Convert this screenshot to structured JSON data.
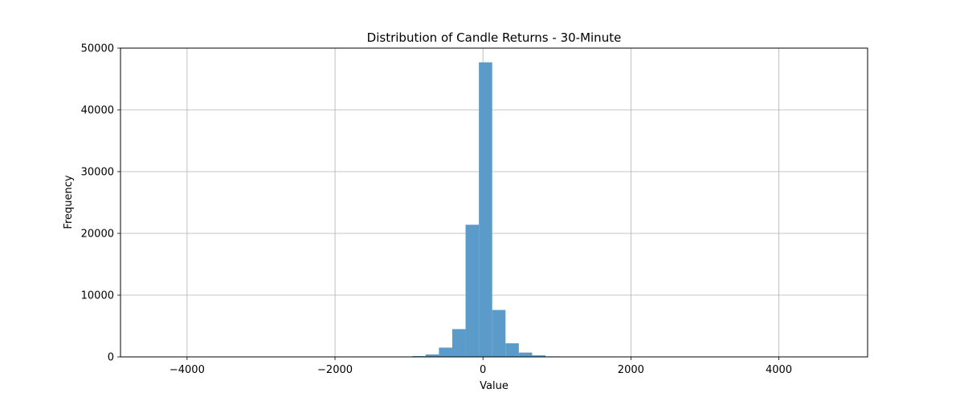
{
  "chart_data": {
    "type": "bar",
    "subtype": "histogram",
    "title": "Distribution of Candle Returns - 30-Minute",
    "xlabel": "Value",
    "ylabel": "Frequency",
    "xlim": [
      -4900,
      5200
    ],
    "ylim": [
      0,
      50000
    ],
    "xticks": [
      -4000,
      -2000,
      0,
      2000,
      4000
    ],
    "xtick_labels": [
      "−4000",
      "−2000",
      "0",
      "2000",
      "4000"
    ],
    "yticks": [
      0,
      10000,
      20000,
      30000,
      40000,
      50000
    ],
    "ytick_labels": [
      "0",
      "10000",
      "20000",
      "30000",
      "40000",
      "50000"
    ],
    "grid": true,
    "bar_color": "#5a9bc9",
    "bins": [
      {
        "x0": -1315,
        "x1": -1135,
        "count": 15
      },
      {
        "x0": -1135,
        "x1": -955,
        "count": 45
      },
      {
        "x0": -955,
        "x1": -775,
        "count": 140
      },
      {
        "x0": -775,
        "x1": -595,
        "count": 400
      },
      {
        "x0": -595,
        "x1": -415,
        "count": 1500
      },
      {
        "x0": -415,
        "x1": -235,
        "count": 4500
      },
      {
        "x0": -235,
        "x1": -55,
        "count": 21400
      },
      {
        "x0": -55,
        "x1": 125,
        "count": 47700
      },
      {
        "x0": 125,
        "x1": 305,
        "count": 7600
      },
      {
        "x0": 305,
        "x1": 485,
        "count": 2200
      },
      {
        "x0": 485,
        "x1": 665,
        "count": 700
      },
      {
        "x0": 665,
        "x1": 845,
        "count": 250
      },
      {
        "x0": 845,
        "x1": 1025,
        "count": 80
      },
      {
        "x0": 1025,
        "x1": 1205,
        "count": 25
      }
    ]
  }
}
